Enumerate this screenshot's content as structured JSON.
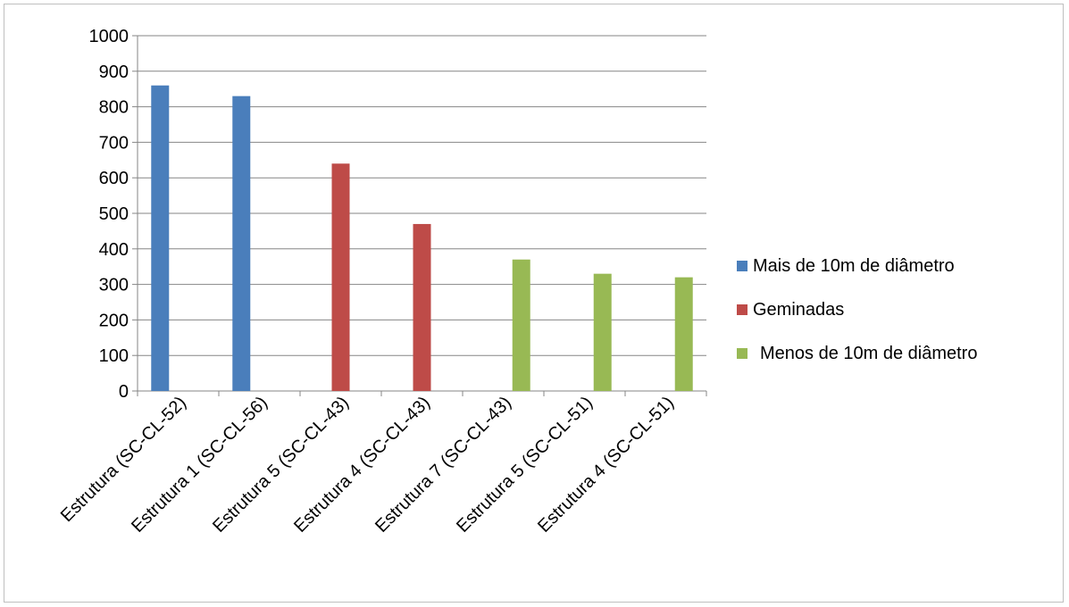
{
  "chart_data": {
    "type": "bar",
    "title": "",
    "xlabel": "",
    "ylabel": "",
    "ylim": [
      0,
      1000
    ],
    "yticks": [
      0,
      100,
      200,
      300,
      400,
      500,
      600,
      700,
      800,
      900,
      1000
    ],
    "grid": true,
    "legend_position": "right",
    "categories": [
      "Estrutura (SC-CL-52)",
      "Estrutura 1 (SC-CL-56)",
      "Estrutura 5 (SC-CL-43)",
      "Estrutura 4 (SC-CL-43)",
      "Estrutura 7 (SC-CL-43)",
      "Estrutura 5 (SC-CL-51)",
      "Estrutura 4 (SC-CL-51)"
    ],
    "series": [
      {
        "name": "Mais de 10m de diâmetro",
        "color": "#4a7ebb",
        "values": [
          860,
          830,
          null,
          null,
          null,
          null,
          null
        ]
      },
      {
        "name": "Geminadas",
        "color": "#be4b48",
        "values": [
          null,
          null,
          640,
          470,
          null,
          null,
          null
        ]
      },
      {
        "name": "Menos de 10m de diâmetro",
        "color": "#98b954",
        "values": [
          null,
          null,
          null,
          null,
          370,
          330,
          320
        ]
      }
    ]
  }
}
